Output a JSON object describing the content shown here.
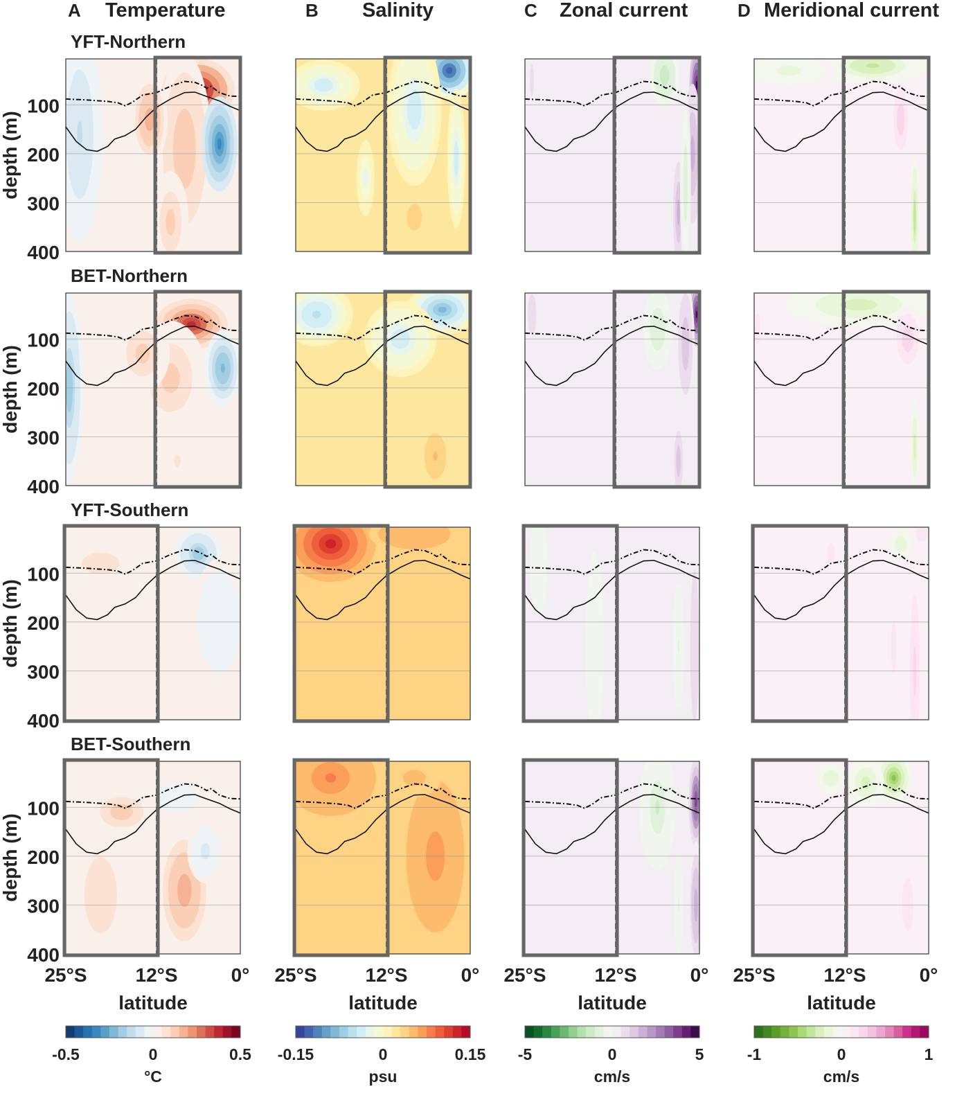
{
  "chart_data": {
    "type": "heatmap",
    "xlabel": "latitude",
    "ylabel": "depth (m)",
    "xlim": [
      -25,
      0
    ],
    "ylim": [
      400,
      6
    ],
    "x_ticks": [
      {
        "v": -25,
        "label": "25°S"
      },
      {
        "v": -12,
        "label": "12°S"
      },
      {
        "v": 0,
        "label": "0°"
      }
    ],
    "y_ticks": [
      {
        "v": 100,
        "label": "100"
      },
      {
        "v": 200,
        "label": "200"
      },
      {
        "v": 300,
        "label": "300"
      },
      {
        "v": 400,
        "label": "400"
      }
    ],
    "grid": true,
    "highlight_boundary_lat": -12,
    "columns": [
      {
        "letter": "A",
        "title": "Temperature",
        "unit": "°C",
        "range": [
          -0.5,
          0.5
        ],
        "tick_labels": [
          "-0.5",
          "0",
          "0.5"
        ],
        "colors": [
          "#0e2f5a",
          "#2166ac",
          "#4393c3",
          "#92c5de",
          "#d1e5f0",
          "#f7f7f7",
          "#fddbc7",
          "#f4a582",
          "#d6604d",
          "#b2182b",
          "#67001f"
        ]
      },
      {
        "letter": "B",
        "title": "Salinity",
        "unit": "psu",
        "range": [
          -0.15,
          0.15
        ],
        "tick_labels": [
          "-0.15",
          "0",
          "0.15"
        ],
        "colors": [
          "#313695",
          "#4575b4",
          "#74add1",
          "#abd9e9",
          "#e0f3f8",
          "#fbfbc8",
          "#fee090",
          "#fdae61",
          "#f46d43",
          "#d73027",
          "#a50026"
        ]
      },
      {
        "letter": "C",
        "title": "Zonal current",
        "unit": "cm/s",
        "range": [
          -5,
          5
        ],
        "tick_labels": [
          "-5",
          "0",
          "5"
        ],
        "colors": [
          "#00441b",
          "#1b7837",
          "#5aae61",
          "#a6dba0",
          "#d9f0d3",
          "#f7f7f7",
          "#e7d4e8",
          "#c2a5cf",
          "#9970ab",
          "#762a83",
          "#2d0036"
        ]
      },
      {
        "letter": "D",
        "title": "Meridional current",
        "unit": "cm/s",
        "range": [
          -1,
          1
        ],
        "tick_labels": [
          "-1",
          "0",
          "1"
        ],
        "colors": [
          "#276419",
          "#4d9221",
          "#7fbc41",
          "#b8e186",
          "#e6f5d0",
          "#f7f7f7",
          "#fde0ef",
          "#f1b6da",
          "#de77ae",
          "#c51b7d",
          "#8e0152"
        ]
      }
    ],
    "rows": [
      {
        "title": "YFT-Northern",
        "highlight": "north"
      },
      {
        "title": "BET-Northern",
        "highlight": "north"
      },
      {
        "title": "YFT-Southern",
        "highlight": "south"
      },
      {
        "title": "BET-Southern",
        "highlight": "south"
      }
    ],
    "curves": {
      "dashed": [
        [
          -25,
          88
        ],
        [
          -22,
          90
        ],
        [
          -19,
          93
        ],
        [
          -17.5,
          96
        ],
        [
          -16.5,
          102
        ],
        [
          -15.5,
          95
        ],
        [
          -14,
          80
        ],
        [
          -12,
          75
        ],
        [
          -10,
          62
        ],
        [
          -8,
          52
        ],
        [
          -6.5,
          54
        ],
        [
          -5.5,
          60
        ],
        [
          -4.8,
          66
        ],
        [
          -4.2,
          62
        ],
        [
          -3,
          75
        ],
        [
          -1.5,
          82
        ],
        [
          0,
          83
        ]
      ],
      "solid": [
        [
          -25,
          145
        ],
        [
          -23.5,
          175
        ],
        [
          -22,
          192
        ],
        [
          -20.5,
          195
        ],
        [
          -19,
          185
        ],
        [
          -18,
          170
        ],
        [
          -16.5,
          163
        ],
        [
          -15,
          150
        ],
        [
          -13.5,
          125
        ],
        [
          -12,
          105
        ],
        [
          -10,
          88
        ],
        [
          -8,
          75
        ],
        [
          -6.5,
          74
        ],
        [
          -5,
          82
        ],
        [
          -3,
          92
        ],
        [
          -1.5,
          103
        ],
        [
          0,
          112
        ]
      ]
    },
    "panels": [
      [
        {
          "bg": 0,
          "features": [
            [
              -6,
              70,
              4,
              50,
              0.5
            ],
            [
              -8,
              190,
              3,
              150,
              0.16
            ],
            [
              -10,
              340,
              2,
              80,
              0.14
            ],
            [
              -13,
              130,
              2,
              70,
              0.22
            ],
            [
              -3,
              180,
              2,
              75,
              -0.35
            ],
            [
              -23,
              160,
              2.5,
              170,
              -0.12
            ]
          ]
        },
        {
          "bg": 0.02,
          "features": [
            [
              -3,
              30,
              3,
              45,
              -0.15
            ],
            [
              -8,
              110,
              3,
              120,
              -0.05
            ],
            [
              -21,
              60,
              4,
              40,
              -0.045
            ],
            [
              -2,
              210,
              1,
              110,
              -0.05
            ],
            [
              -15,
              250,
              1,
              60,
              -0.03
            ],
            [
              -8,
              330,
              2,
              50,
              0.04
            ]
          ]
        },
        {
          "bg": 0.3,
          "features": [
            [
              -0.4,
              60,
              0.8,
              60,
              5
            ],
            [
              -1,
              200,
              1,
              110,
              2
            ],
            [
              -5,
              40,
              2,
              60,
              -1.5
            ],
            [
              -3,
              320,
              0.6,
              80,
              2
            ],
            [
              -2,
              260,
              0.6,
              150,
              -1
            ],
            [
              -24,
              50,
              0.5,
              60,
              0.7
            ]
          ]
        },
        {
          "bg": 0.03,
          "features": [
            [
              -8,
              20,
              6,
              30,
              -0.35
            ],
            [
              -20,
              30,
              5,
              30,
              -0.15
            ],
            [
              -4,
              130,
              1,
              60,
              0.3
            ],
            [
              -2,
              330,
              0.5,
              100,
              -0.4
            ]
          ]
        }
      ],
      [
        {
          "bg": 0,
          "features": [
            [
              -7,
              70,
              4,
              40,
              0.4
            ],
            [
              -10,
              180,
              4,
              90,
              0.15
            ],
            [
              -14,
              130,
              3,
              60,
              0.15
            ],
            [
              -9,
              350,
              3,
              80,
              0.06
            ],
            [
              -2.5,
              160,
              2,
              60,
              -0.25
            ],
            [
              -24.5,
              200,
              1.5,
              150,
              -0.2
            ]
          ]
        },
        {
          "bg": 0.02,
          "features": [
            [
              -4,
              40,
              4,
              40,
              -0.1
            ],
            [
              -22,
              50,
              4,
              50,
              -0.06
            ],
            [
              -10,
              100,
              4,
              60,
              -0.05
            ],
            [
              -5,
              340,
              2,
              60,
              0.05
            ]
          ]
        },
        {
          "bg": 0.3,
          "features": [
            [
              -0.4,
              50,
              0.8,
              50,
              5
            ],
            [
              -2,
              110,
              1,
              100,
              1.5
            ],
            [
              -6,
              80,
              2,
              80,
              -1
            ],
            [
              -3,
              350,
              0.6,
              60,
              1.5
            ],
            [
              -24,
              50,
              0.6,
              40,
              1
            ]
          ]
        },
        {
          "bg": 0.03,
          "features": [
            [
              -10,
              30,
              8,
              35,
              -0.3
            ],
            [
              -3,
              100,
              1.5,
              50,
              0.3
            ],
            [
              -2,
              320,
              0.5,
              80,
              -0.3
            ],
            [
              -24.5,
              80,
              0.5,
              40,
              0.2
            ]
          ]
        }
      ],
      [
        {
          "bg": 0.02,
          "features": [
            [
              -6,
              60,
              2.5,
              40,
              -0.2
            ],
            [
              -20,
              80,
              5,
              40,
              0.08
            ],
            [
              -22,
              300,
              3,
              100,
              0.05
            ],
            [
              -3,
              200,
              3,
              100,
              -0.05
            ]
          ]
        },
        {
          "bg": 0.04,
          "features": [
            [
              -20,
              40,
              5,
              60,
              0.13
            ],
            [
              -8,
              20,
              5,
              30,
              0.06
            ],
            [
              -10,
              250,
              6,
              150,
              0.04
            ]
          ]
        },
        {
          "bg": 0.05,
          "features": [
            [
              -0.7,
              250,
              0.8,
              200,
              1
            ],
            [
              -3,
              250,
              0.6,
              100,
              -0.6
            ],
            [
              -15,
              250,
              1,
              150,
              -0.3
            ],
            [
              -23,
              80,
              1,
              80,
              -0.4
            ]
          ]
        },
        {
          "bg": 0.05,
          "features": [
            [
              -1,
              20,
              1,
              20,
              0.2
            ],
            [
              -4,
              40,
              1.5,
              30,
              -0.2
            ],
            [
              -2,
              300,
              0.7,
              150,
              0.25
            ],
            [
              -5,
              250,
              0.7,
              100,
              0.15
            ],
            [
              -14,
              60,
              1,
              40,
              0.15
            ]
          ]
        }
      ],
      [
        {
          "bg": 0.02,
          "features": [
            [
              -8,
              270,
              3,
              100,
              0.2
            ],
            [
              -17,
              110,
              3,
              30,
              0.15
            ],
            [
              -20,
              280,
              3,
              100,
              0.1
            ],
            [
              -5,
              190,
              2,
              50,
              -0.08
            ],
            [
              -9,
              80,
              3,
              30,
              -0.05
            ]
          ]
        },
        {
          "bg": 0.04,
          "features": [
            [
              -20,
              40,
              5,
              60,
              0.08
            ],
            [
              -5,
              200,
              4,
              150,
              0.07
            ],
            [
              -8,
              40,
              3,
              30,
              0.05
            ]
          ]
        },
        {
          "bg": 0.2,
          "features": [
            [
              -0.5,
              90,
              0.8,
              70,
              4
            ],
            [
              -0.5,
              300,
              0.8,
              100,
              2
            ],
            [
              -6,
              100,
              2,
              100,
              -1.2
            ],
            [
              -3,
              300,
              0.6,
              100,
              -0.6
            ]
          ]
        },
        {
          "bg": 0.05,
          "features": [
            [
              -5,
              40,
              2,
              40,
              -0.6
            ],
            [
              -9,
              50,
              2,
              40,
              -0.3
            ],
            [
              -3,
              300,
              1.5,
              100,
              0.15
            ],
            [
              -14,
              40,
              2,
              30,
              -0.2
            ],
            [
              -7,
              250,
              1.5,
              100,
              0.1
            ]
          ]
        }
      ]
    ]
  }
}
